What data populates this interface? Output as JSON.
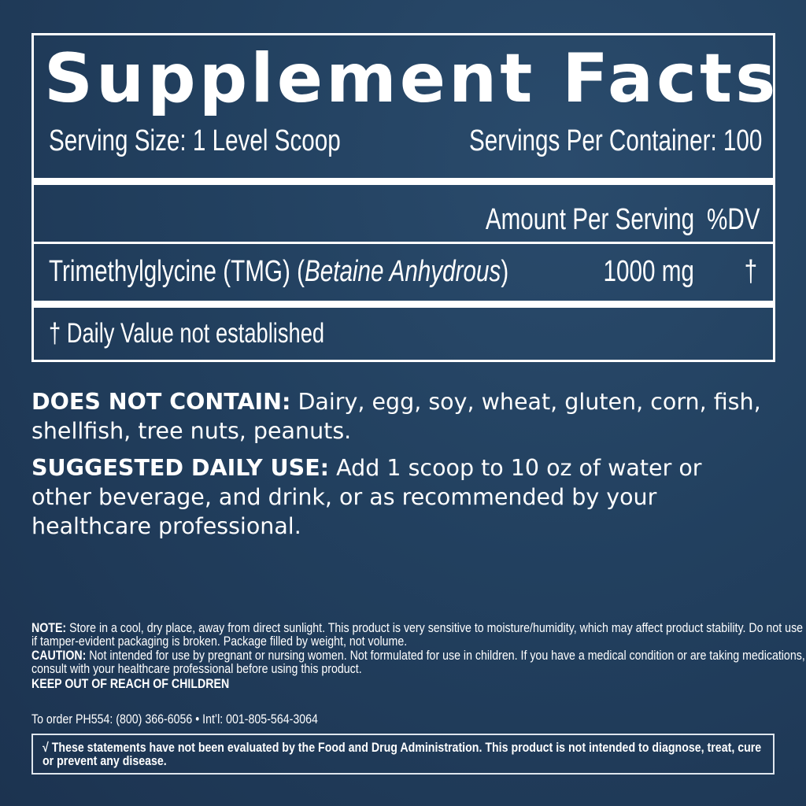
{
  "facts": {
    "title": "Supplement Facts",
    "serving_size": "Serving Size: 1 Level Scoop",
    "servings_per_container": "Servings Per Container: 100",
    "amount_header": "Amount Per Serving",
    "dv_header": "%DV",
    "ingredient": {
      "name": "Trimethylglycine (TMG) (",
      "name_italic": "Betaine Anhydrous",
      "name_close": ")",
      "amount": "1000 mg",
      "dv": "†"
    },
    "footnote": "† Daily Value not established"
  },
  "does_not_contain": {
    "label": "DOES NOT CONTAIN:",
    "text": " Dairy, egg, soy, wheat, gluten, corn, fish, shellfish, tree nuts, peanuts."
  },
  "suggested_use": {
    "label": "SUGGESTED DAILY USE:",
    "text": " Add 1 scoop to 10 oz of water or other beverage, and drink, or as recommended by your healthcare professional."
  },
  "note": {
    "label": "NOTE:",
    "text": " Store in a cool, dry place, away from direct sunlight. This product is very sensitive to moisture/humidity, which may affect product stability. Do not use if tamper-evident packaging is broken. Package filled by weight, not volume."
  },
  "caution": {
    "label": "CAUTION:",
    "text": " Not intended for use by pregnant or nursing women. Not formulated for use in children. If you have a medical condition or are taking medications, consult with your healthcare professional before using this product."
  },
  "keep_out": "KEEP OUT OF REACH OF CHILDREN",
  "order": "To order PH554: (800) 366-6056 • Int’l: 001-805-564-3064",
  "fda": "√ These statements have not been evaluated by the Food and Drug Administration. This product is not intended to diagnose, treat, cure or prevent any disease.",
  "colors": {
    "background": "#22405f",
    "text": "#ffffff"
  }
}
